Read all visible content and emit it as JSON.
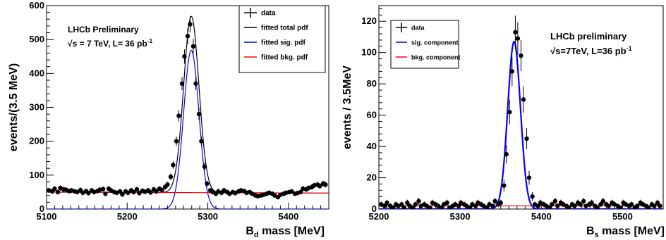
{
  "chart_data": [
    {
      "type": "scatter",
      "xlabel": "B",
      "xlabel_sub": "d",
      "xlabel_unit": " mass [MeV]",
      "ylabel": "events/(3.5 MeV)",
      "xlim": [
        5100,
        5450
      ],
      "ylim": [
        0,
        600
      ],
      "xticks": [
        "5100",
        "5200",
        "5300",
        "5400"
      ],
      "yticks": [
        "0",
        "100",
        "200",
        "300",
        "400",
        "500",
        "600"
      ],
      "annotation": {
        "line1": "LHCb Preliminary",
        "line2_prefix": "√",
        "line2_main": "s = 7 TeV, L= 36 pb",
        "line2_sup": "-1"
      },
      "legend": {
        "placement": "top-right",
        "entries": [
          {
            "label": "data",
            "style": "marker"
          },
          {
            "label": "fitted total pdf",
            "color": "#000000"
          },
          {
            "label": "fitted sig. pdf",
            "color": "#0000ff"
          },
          {
            "label": "fitted bkg. pdf",
            "color": "#ff0000"
          }
        ]
      },
      "series": [
        {
          "name": "data",
          "x": [
            5103,
            5107,
            5110,
            5114,
            5117,
            5121,
            5124,
            5128,
            5131,
            5135,
            5138,
            5142,
            5145,
            5149,
            5152,
            5156,
            5159,
            5163,
            5166,
            5170,
            5173,
            5177,
            5180,
            5184,
            5187,
            5191,
            5194,
            5198,
            5201,
            5205,
            5208,
            5212,
            5215,
            5219,
            5222,
            5226,
            5229,
            5233,
            5236,
            5240,
            5243,
            5247,
            5250,
            5254,
            5257,
            5261,
            5264,
            5268,
            5271,
            5275,
            5278,
            5282,
            5285,
            5289,
            5292,
            5296,
            5299,
            5303,
            5306,
            5310,
            5313,
            5317,
            5320,
            5324,
            5327,
            5331,
            5334,
            5338,
            5341,
            5345,
            5348,
            5352,
            5355,
            5359,
            5362,
            5366,
            5369,
            5373,
            5376,
            5380,
            5383,
            5387,
            5390,
            5394,
            5397,
            5401,
            5404,
            5408,
            5411,
            5415,
            5418,
            5422,
            5425,
            5429,
            5432,
            5436,
            5439,
            5443,
            5446
          ],
          "y": [
            55,
            52,
            60,
            50,
            62,
            58,
            57,
            53,
            55,
            52,
            50,
            56,
            48,
            53,
            47,
            55,
            50,
            53,
            57,
            59,
            45,
            60,
            55,
            50,
            48,
            52,
            43,
            52,
            48,
            55,
            50,
            58,
            47,
            54,
            51,
            55,
            49,
            58,
            52,
            60,
            56,
            65,
            72,
            95,
            130,
            200,
            275,
            370,
            450,
            510,
            545,
            480,
            370,
            280,
            200,
            125,
            75,
            55,
            50,
            45,
            52,
            48,
            55,
            50,
            45,
            50,
            47,
            52,
            55,
            53,
            48,
            50,
            45,
            40,
            38,
            40,
            42,
            45,
            48,
            45,
            40,
            35,
            42,
            45,
            48,
            50,
            52,
            45,
            47,
            50,
            60,
            58,
            62,
            65,
            70,
            72,
            68,
            75,
            72
          ]
        },
        {
          "name": "fitted total pdf",
          "mean": 5279.5,
          "sigma": 9.5,
          "peak": 520,
          "bkg_start": 50,
          "bkg_end": 47
        },
        {
          "name": "fitted sig. pdf",
          "mean": 5279.5,
          "sigma": 9.5,
          "peak": 468
        },
        {
          "name": "fitted bkg. pdf",
          "bkg_start": 50,
          "bkg_end": 47
        }
      ],
      "colors": {
        "frame": "#000000",
        "data": "#000000",
        "total": "#000000",
        "signal": "#0000ff",
        "background": "#ff0000"
      }
    },
    {
      "type": "scatter",
      "xlabel": "B",
      "xlabel_sub": "s",
      "xlabel_unit": " mass [MeV]",
      "ylabel": "events / 3.5MeV",
      "xlim": [
        5200,
        5550
      ],
      "ylim": [
        0,
        130
      ],
      "xticks": [
        "5200",
        "5300",
        "5400",
        "5500"
      ],
      "yticks": [
        "0",
        "20",
        "40",
        "60",
        "80",
        "100",
        "120"
      ],
      "annotation": {
        "line1": "LHCb preliminary",
        "line2_prefix": "√",
        "line2_main": "s=7TeV, L=36 pb",
        "line2_sup": "-1"
      },
      "legend": {
        "placement": "top-left",
        "entries": [
          {
            "label": "data",
            "style": "marker"
          },
          {
            "label": "sig. component",
            "color": "#0000ff"
          },
          {
            "label": "bkg. component",
            "color": "#ff0000"
          }
        ]
      },
      "series": [
        {
          "name": "data",
          "x": [
            5203,
            5207,
            5210,
            5214,
            5217,
            5221,
            5224,
            5228,
            5231,
            5235,
            5238,
            5242,
            5245,
            5249,
            5252,
            5256,
            5259,
            5263,
            5266,
            5270,
            5273,
            5277,
            5280,
            5284,
            5287,
            5291,
            5294,
            5298,
            5301,
            5305,
            5308,
            5312,
            5315,
            5319,
            5322,
            5326,
            5329,
            5333,
            5336,
            5340,
            5343,
            5347,
            5350,
            5354,
            5357,
            5361,
            5364,
            5368,
            5371,
            5375,
            5378,
            5382,
            5385,
            5389,
            5392,
            5396,
            5399,
            5403,
            5406,
            5410,
            5413,
            5417,
            5420,
            5424,
            5427,
            5431,
            5434,
            5438,
            5441,
            5445,
            5448,
            5452,
            5455,
            5459,
            5462,
            5466,
            5469,
            5473,
            5476,
            5480,
            5483,
            5487,
            5490,
            5494,
            5497,
            5501,
            5504,
            5508,
            5511,
            5515,
            5518,
            5522,
            5525,
            5529,
            5532,
            5536,
            5539,
            5543,
            5546
          ],
          "y": [
            3,
            2,
            4,
            2,
            1,
            3,
            2,
            3,
            1,
            4,
            2,
            1,
            3,
            5,
            2,
            3,
            2,
            1,
            4,
            3,
            2,
            1,
            3,
            4,
            1,
            2,
            3,
            2,
            4,
            3,
            2,
            1,
            3,
            2,
            4,
            3,
            2,
            1,
            3,
            2,
            5,
            3,
            4,
            15,
            35,
            62,
            88,
            113,
            109,
            98,
            70,
            45,
            20,
            8,
            3,
            2,
            4,
            3,
            2,
            1,
            3,
            5,
            2,
            4,
            3,
            2,
            1,
            3,
            2,
            4,
            3,
            5,
            2,
            3,
            4,
            2,
            1,
            3,
            5,
            3,
            2,
            4,
            3,
            2,
            1,
            4,
            3,
            2,
            3,
            1,
            2,
            4,
            3,
            2,
            1,
            3,
            2,
            4,
            2
          ]
        },
        {
          "name": "sig. component",
          "mean": 5366.5,
          "sigma": 7.8,
          "peak": 107
        },
        {
          "name": "bkg. component",
          "bkg_start": 2.0,
          "bkg_end": 2.0
        }
      ],
      "colors": {
        "frame": "#000000",
        "data": "#000000",
        "signal": "#0000ff",
        "background": "#ff0000"
      }
    }
  ]
}
